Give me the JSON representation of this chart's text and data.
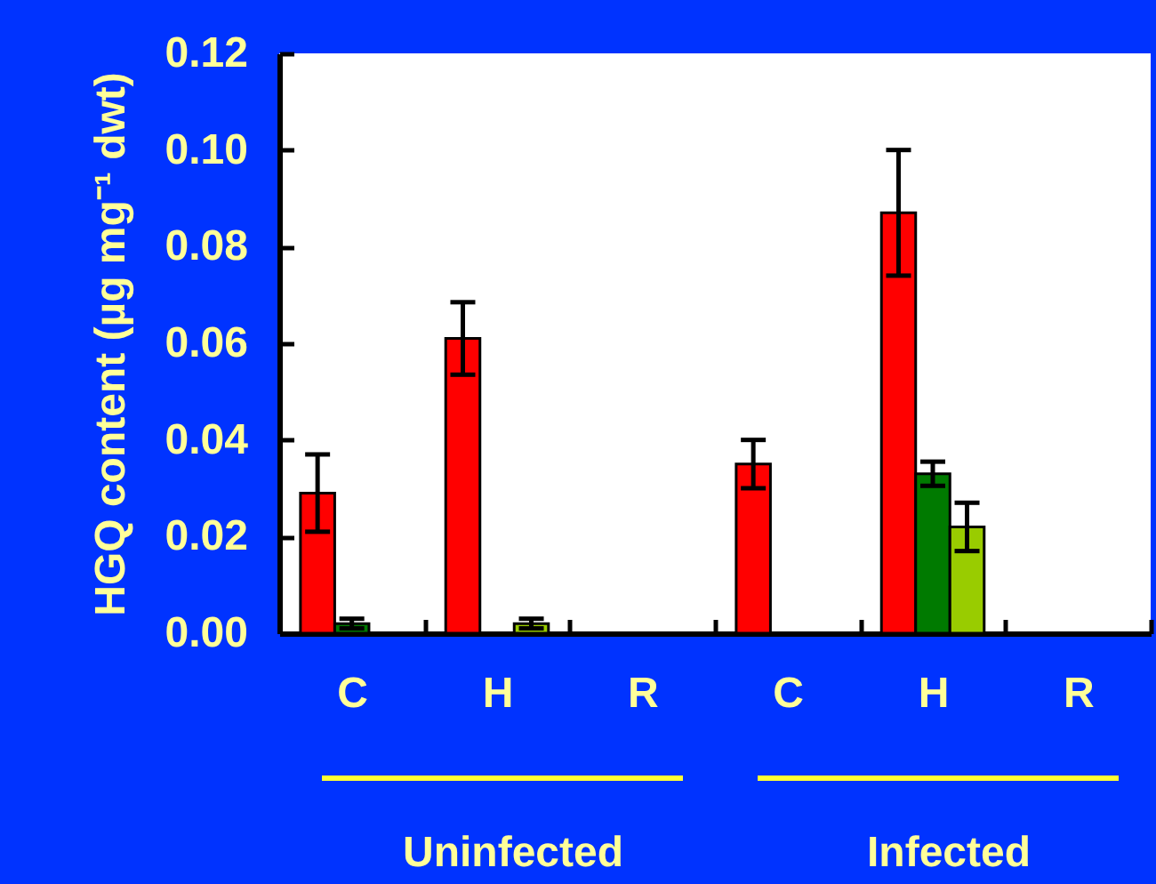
{
  "chart_data": {
    "type": "bar",
    "ylabel": "HGQ content (µg mg⁻¹ dwt)",
    "categories": [
      "C",
      "H",
      "R",
      "C",
      "H",
      "R"
    ],
    "series": [
      {
        "color": "#ff0000",
        "values": [
          0.029,
          0.061,
          null,
          0.035,
          0.087,
          null
        ],
        "errors": [
          0.008,
          0.0075,
          null,
          0.005,
          0.013,
          null
        ]
      },
      {
        "color": "#007a00",
        "values": [
          0.002,
          null,
          null,
          null,
          0.033,
          null
        ],
        "errors": [
          0.001,
          null,
          null,
          null,
          0.0025,
          null
        ]
      },
      {
        "color": "#99cc00",
        "values": [
          null,
          0.002,
          null,
          null,
          0.022,
          null
        ],
        "errors": [
          null,
          0.001,
          null,
          null,
          0.005,
          null
        ]
      }
    ],
    "ylim": [
      0,
      0.12
    ],
    "yticks": [
      {
        "value": 0,
        "label": "0.00"
      },
      0.02,
      0.04,
      0.06,
      0.08,
      {
        "value": 0.1,
        "label": "0.10"
      },
      0.12
    ],
    "annotations": [
      "Uninfected",
      "Infected"
    ],
    "grid": false,
    "legend": false
  }
}
